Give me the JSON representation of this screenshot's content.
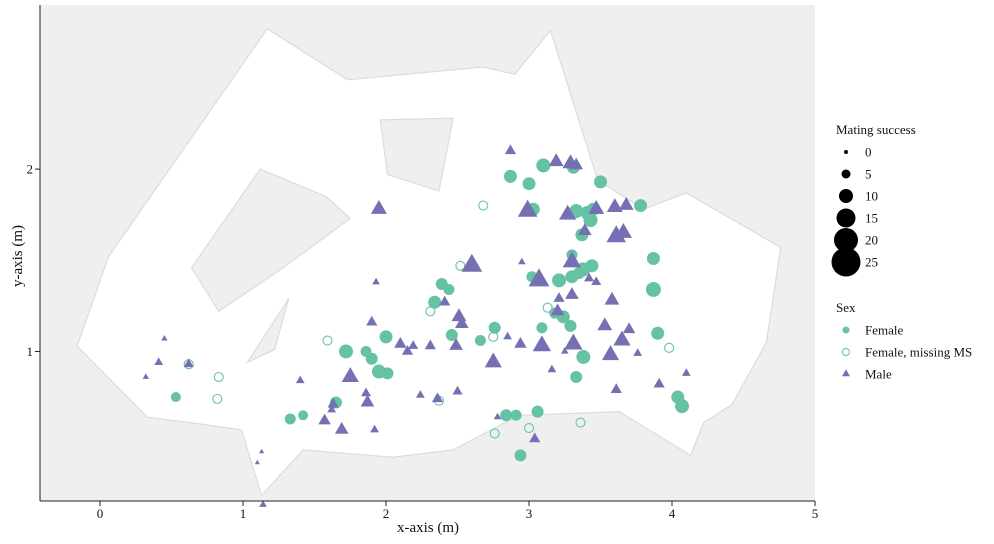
{
  "chart_data": {
    "type": "scatter",
    "title": "",
    "xlabel": "x-axis (m)",
    "ylabel": "y-axis (m)",
    "xlim": [
      -0.42,
      5.0
    ],
    "ylim": [
      0.18,
      2.9
    ],
    "xticks": [
      0,
      1,
      2,
      3,
      4,
      5
    ],
    "yticks": [
      1,
      2
    ],
    "x_tick_labels": [
      "0",
      "1",
      "2",
      "3",
      "4",
      "5"
    ],
    "y_tick_labels": [
      "1",
      "2"
    ],
    "grid": false,
    "background_color": "#efefef",
    "arena_fill": "#ffffff",
    "arena_outline": "#dcdcdc",
    "arena_outline_polygon": [
      [
        -0.16,
        1.03
      ],
      [
        0.06,
        1.52
      ],
      [
        1.17,
        2.77
      ],
      [
        1.73,
        2.49
      ],
      [
        2.68,
        2.56
      ],
      [
        2.9,
        2.52
      ],
      [
        3.15,
        2.76
      ],
      [
        3.48,
        1.94
      ],
      [
        3.8,
        1.78
      ],
      [
        4.1,
        1.87
      ],
      [
        4.76,
        1.57
      ],
      [
        4.66,
        1.05
      ],
      [
        4.42,
        0.71
      ],
      [
        4.22,
        0.61
      ],
      [
        4.13,
        0.43
      ],
      [
        3.63,
        0.67
      ],
      [
        2.93,
        0.65
      ],
      [
        2.47,
        0.46
      ],
      [
        2.05,
        0.42
      ],
      [
        1.42,
        0.46
      ],
      [
        1.13,
        0.21
      ],
      [
        0.99,
        0.57
      ],
      [
        0.72,
        0.6
      ],
      [
        0.33,
        0.64
      ],
      [
        -0.16,
        1.03
      ]
    ],
    "holes": [
      [
        [
          0.64,
          1.46
        ],
        [
          1.12,
          2.0
        ],
        [
          1.58,
          1.85
        ],
        [
          1.75,
          1.73
        ],
        [
          1.3,
          1.47
        ],
        [
          0.83,
          1.22
        ],
        [
          0.64,
          1.46
        ]
      ],
      [
        [
          1.96,
          2.27
        ],
        [
          2.47,
          2.28
        ],
        [
          2.37,
          1.88
        ],
        [
          2.01,
          1.97
        ],
        [
          1.96,
          2.27
        ]
      ],
      [
        [
          1.03,
          0.94
        ],
        [
          1.32,
          1.29
        ],
        [
          1.22,
          1.01
        ],
        [
          1.03,
          0.94
        ]
      ]
    ],
    "legend": {
      "position": "right",
      "size_title": "Mating success",
      "size_levels": [
        0,
        5,
        10,
        15,
        20,
        25
      ],
      "size_labels": [
        "0",
        "5",
        "10",
        "15",
        "20",
        "25"
      ],
      "sex_title": "Sex",
      "sex_labels": [
        "Female",
        "Female, missing MS",
        "Male"
      ]
    },
    "series": [
      {
        "name": "Female",
        "color": "#66c2a5",
        "marker": "filled-circle",
        "points": [
          [
            0.53,
            0.75,
            6
          ],
          [
            1.33,
            0.63,
            7
          ],
          [
            1.42,
            0.65,
            6
          ],
          [
            1.65,
            0.72,
            8
          ],
          [
            1.72,
            1.0,
            10
          ],
          [
            1.86,
            1.0,
            7
          ],
          [
            1.9,
            0.96,
            8
          ],
          [
            1.95,
            0.89,
            10
          ],
          [
            2.01,
            0.88,
            8
          ],
          [
            2.0,
            1.08,
            9
          ],
          [
            2.34,
            1.27,
            9
          ],
          [
            2.39,
            1.37,
            8
          ],
          [
            2.44,
            1.34,
            7
          ],
          [
            2.46,
            1.09,
            8
          ],
          [
            2.66,
            1.06,
            7
          ],
          [
            2.76,
            1.13,
            8
          ],
          [
            2.84,
            0.65,
            8
          ],
          [
            2.91,
            0.65,
            7
          ],
          [
            2.94,
            0.43,
            8
          ],
          [
            3.06,
            0.67,
            8
          ],
          [
            3.09,
            1.13,
            7
          ],
          [
            2.87,
            1.96,
            9
          ],
          [
            3.0,
            1.92,
            9
          ],
          [
            3.1,
            2.02,
            10
          ],
          [
            3.03,
            1.78,
            9
          ],
          [
            3.02,
            1.41,
            7
          ],
          [
            3.21,
            1.39,
            10
          ],
          [
            3.18,
            1.21,
            7
          ],
          [
            3.24,
            1.19,
            9
          ],
          [
            3.3,
            1.41,
            9
          ],
          [
            3.3,
            1.53,
            7
          ],
          [
            3.35,
            1.43,
            8
          ],
          [
            3.38,
            1.45,
            10
          ],
          [
            3.44,
            1.47,
            9
          ],
          [
            3.41,
            1.76,
            10
          ],
          [
            3.43,
            1.72,
            10
          ],
          [
            3.45,
            1.78,
            9
          ],
          [
            3.5,
            1.93,
            9
          ],
          [
            3.33,
            1.77,
            10
          ],
          [
            3.37,
            1.64,
            9
          ],
          [
            3.31,
            2.01,
            9
          ],
          [
            3.29,
            1.14,
            8
          ],
          [
            3.38,
            0.97,
            10
          ],
          [
            3.33,
            0.86,
            8
          ],
          [
            3.78,
            1.8,
            9
          ],
          [
            3.87,
            1.51,
            9
          ],
          [
            3.87,
            1.34,
            11
          ],
          [
            3.9,
            1.1,
            9
          ],
          [
            4.04,
            0.75,
            9
          ],
          [
            4.07,
            0.7,
            10
          ]
        ]
      },
      {
        "name": "Female, missing MS",
        "color": "#66c2a5",
        "marker": "hollow-circle",
        "points": [
          [
            0.62,
            0.93
          ],
          [
            0.83,
            0.86
          ],
          [
            0.82,
            0.74
          ],
          [
            1.59,
            1.06
          ],
          [
            2.31,
            1.22
          ],
          [
            2.52,
            1.47
          ],
          [
            2.37,
            0.73
          ],
          [
            2.68,
            1.8
          ],
          [
            2.75,
            1.08
          ],
          [
            2.76,
            0.55
          ],
          [
            3.0,
            0.58
          ],
          [
            3.13,
            1.24
          ],
          [
            3.36,
            0.61
          ],
          [
            3.98,
            1.02
          ]
        ]
      },
      {
        "name": "Male",
        "color": "#7570b3",
        "marker": "triangle",
        "points": [
          [
            0.32,
            0.86,
            2
          ],
          [
            0.41,
            0.94,
            4
          ],
          [
            0.45,
            1.07,
            2
          ],
          [
            0.62,
            0.93,
            5
          ],
          [
            1.1,
            0.39,
            1
          ],
          [
            1.13,
            0.45,
            1
          ],
          [
            1.14,
            0.16,
            3
          ],
          [
            1.4,
            0.84,
            4
          ],
          [
            1.57,
            0.62,
            7
          ],
          [
            1.62,
            0.68,
            4
          ],
          [
            1.63,
            0.71,
            6
          ],
          [
            1.69,
            0.57,
            8
          ],
          [
            1.75,
            0.86,
            11
          ],
          [
            1.86,
            0.77,
            5
          ],
          [
            1.87,
            0.72,
            8
          ],
          [
            1.9,
            1.16,
            6
          ],
          [
            1.92,
            0.57,
            4
          ],
          [
            1.93,
            1.38,
            3
          ],
          [
            1.95,
            1.78,
            10
          ],
          [
            2.1,
            1.04,
            7
          ],
          [
            2.15,
            1.0,
            6
          ],
          [
            2.19,
            1.03,
            5
          ],
          [
            2.24,
            0.76,
            4
          ],
          [
            2.31,
            1.03,
            6
          ],
          [
            2.36,
            0.74,
            6
          ],
          [
            2.41,
            1.27,
            6
          ],
          [
            2.49,
            1.03,
            8
          ],
          [
            2.5,
            0.78,
            5
          ],
          [
            2.51,
            1.19,
            9
          ],
          [
            2.53,
            1.15,
            8
          ],
          [
            2.6,
            1.47,
            14
          ],
          [
            2.75,
            0.94,
            11
          ],
          [
            2.78,
            0.64,
            3
          ],
          [
            2.85,
            1.08,
            4
          ],
          [
            2.87,
            2.1,
            6
          ],
          [
            2.94,
            1.04,
            7
          ],
          [
            2.95,
            1.49,
            3
          ],
          [
            2.99,
            1.77,
            13
          ],
          [
            3.04,
            0.52,
            6
          ],
          [
            3.07,
            1.39,
            14
          ],
          [
            3.09,
            1.03,
            12
          ],
          [
            3.16,
            0.9,
            4
          ],
          [
            3.19,
            2.04,
            9
          ],
          [
            3.2,
            1.22,
            8
          ],
          [
            3.21,
            1.29,
            6
          ],
          [
            3.25,
            1.0,
            3
          ],
          [
            3.27,
            1.75,
            11
          ],
          [
            3.29,
            2.03,
            10
          ],
          [
            3.3,
            1.49,
            12
          ],
          [
            3.3,
            1.31,
            8
          ],
          [
            3.31,
            1.04,
            12
          ],
          [
            3.33,
            2.02,
            8
          ],
          [
            3.39,
            1.66,
            8
          ],
          [
            3.42,
            1.4,
            5
          ],
          [
            3.47,
            1.38,
            5
          ],
          [
            3.47,
            1.78,
            10
          ],
          [
            3.53,
            1.14,
            9
          ],
          [
            3.57,
            0.98,
            11
          ],
          [
            3.58,
            1.28,
            9
          ],
          [
            3.6,
            1.79,
            10
          ],
          [
            3.61,
            0.79,
            6
          ],
          [
            3.61,
            1.63,
            13
          ],
          [
            3.65,
            1.06,
            11
          ],
          [
            3.66,
            1.65,
            11
          ],
          [
            3.68,
            1.8,
            9
          ],
          [
            3.7,
            1.12,
            7
          ],
          [
            3.76,
            0.99,
            4
          ],
          [
            3.91,
            0.82,
            6
          ],
          [
            4.1,
            0.88,
            4
          ]
        ]
      }
    ]
  }
}
